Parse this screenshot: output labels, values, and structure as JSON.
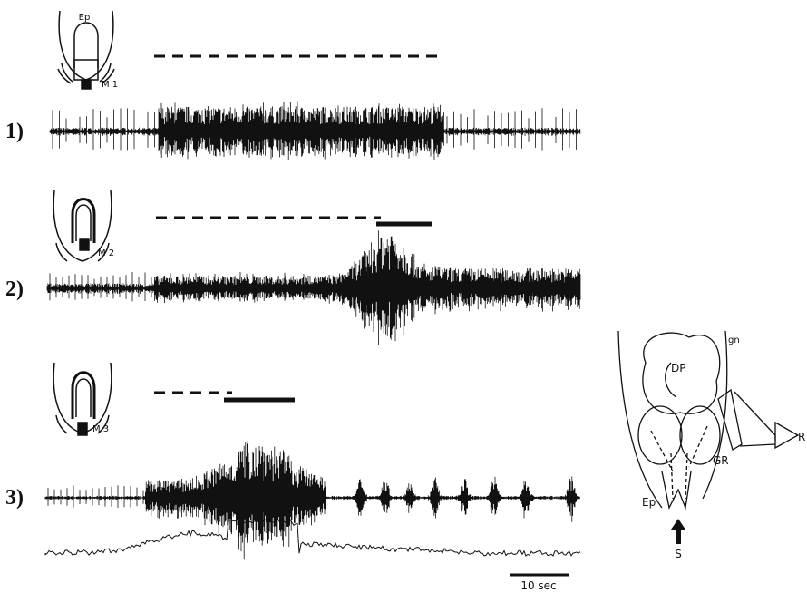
{
  "panels": [
    {
      "number": "1)",
      "icon_top": "Ep",
      "icon_label": "M 1"
    },
    {
      "number": "2)",
      "icon_label": "M 2"
    },
    {
      "number": "3)",
      "icon_label": "M 3"
    }
  ],
  "scale_bar": "10 sec",
  "diagram": {
    "labels": [
      "DP",
      "gn",
      "GR",
      "Ep",
      "S",
      "R"
    ]
  }
}
